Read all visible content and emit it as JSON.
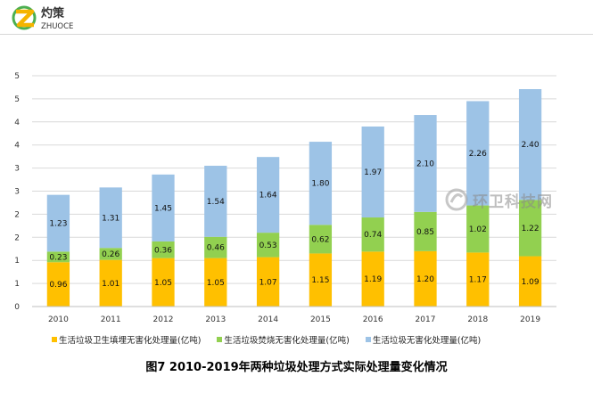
{
  "brand": {
    "logo_text": "灼策",
    "logo_subtext": "ZHUOCE",
    "colors": {
      "yellow": "#F5B400",
      "green": "#4CAF50",
      "dark": "#333333"
    }
  },
  "watermark": {
    "text": "环卫科技网"
  },
  "caption": "图7  2010-2019年两种垃圾处理方式实际处理量变化情况",
  "chart_data": {
    "type": "bar",
    "stacked": true,
    "categories": [
      "2010",
      "2011",
      "2012",
      "2013",
      "2014",
      "2015",
      "2016",
      "2017",
      "2018",
      "2019"
    ],
    "y_tick_labels": [
      "0",
      "1",
      "1",
      "2",
      "2",
      "3",
      "3",
      "4",
      "4",
      "5",
      "5"
    ],
    "ylim": [
      0,
      5
    ],
    "y_step": 0.5,
    "grid": true,
    "legend_position": "bottom",
    "series": [
      {
        "name": "生活垃圾卫生填埋无害化处理量(亿吨)",
        "color": "#FFC000",
        "values": [
          0.96,
          1.01,
          1.05,
          1.05,
          1.07,
          1.15,
          1.19,
          1.2,
          1.17,
          1.09
        ]
      },
      {
        "name": "生活垃圾焚烧无害化处理量(亿吨)",
        "color": "#92D050",
        "values": [
          0.23,
          0.26,
          0.36,
          0.46,
          0.53,
          0.62,
          0.74,
          0.85,
          1.02,
          1.22
        ]
      },
      {
        "name": "生活垃圾无害化处理量(亿吨)",
        "color": "#9DC3E6",
        "values": [
          1.23,
          1.31,
          1.45,
          1.54,
          1.64,
          1.8,
          1.97,
          2.1,
          2.26,
          2.4
        ]
      }
    ]
  }
}
